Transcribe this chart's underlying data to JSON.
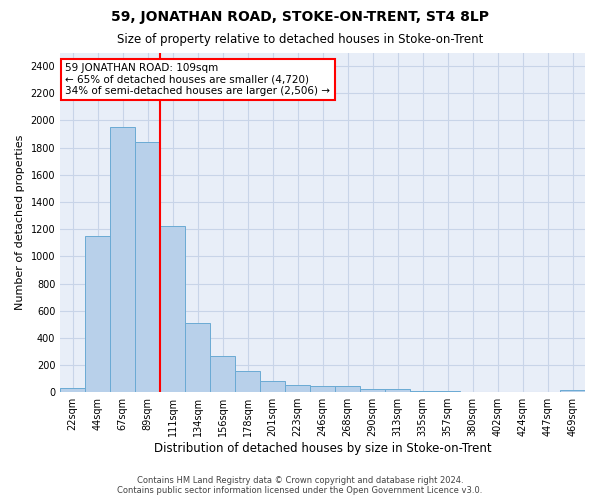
{
  "title": "59, JONATHAN ROAD, STOKE-ON-TRENT, ST4 8LP",
  "subtitle": "Size of property relative to detached houses in Stoke-on-Trent",
  "xlabel": "Distribution of detached houses by size in Stoke-on-Trent",
  "ylabel": "Number of detached properties",
  "footer_line1": "Contains HM Land Registry data © Crown copyright and database right 2024.",
  "footer_line2": "Contains public sector information licensed under the Open Government Licence v3.0.",
  "bar_labels": [
    "22sqm",
    "44sqm",
    "67sqm",
    "89sqm",
    "111sqm",
    "134sqm",
    "156sqm",
    "178sqm",
    "201sqm",
    "223sqm",
    "246sqm",
    "268sqm",
    "290sqm",
    "313sqm",
    "335sqm",
    "357sqm",
    "380sqm",
    "402sqm",
    "424sqm",
    "447sqm",
    "469sqm"
  ],
  "bar_values": [
    30,
    1150,
    1950,
    1840,
    1220,
    510,
    270,
    155,
    80,
    50,
    45,
    45,
    20,
    20,
    10,
    10,
    5,
    0,
    0,
    5,
    15
  ],
  "bar_color": "#b8d0ea",
  "bar_edgecolor": "#6aaad4",
  "ylim_max": 2500,
  "yticks": [
    0,
    200,
    400,
    600,
    800,
    1000,
    1200,
    1400,
    1600,
    1800,
    2000,
    2200,
    2400
  ],
  "vline_x": 3.5,
  "annotation_title": "59 JONATHAN ROAD: 109sqm",
  "annotation_line2": "← 65% of detached houses are smaller (4,720)",
  "annotation_line3": "34% of semi-detached houses are larger (2,506) →",
  "annotation_box_facecolor": "white",
  "annotation_box_edgecolor": "red",
  "vline_color": "red",
  "grid_color": "#c8d4e8",
  "background_color": "#e8eef8",
  "title_fontsize": 10,
  "subtitle_fontsize": 8.5,
  "ylabel_fontsize": 8,
  "xlabel_fontsize": 8.5,
  "tick_fontsize": 7,
  "footer_fontsize": 6,
  "annotation_fontsize": 7.5
}
